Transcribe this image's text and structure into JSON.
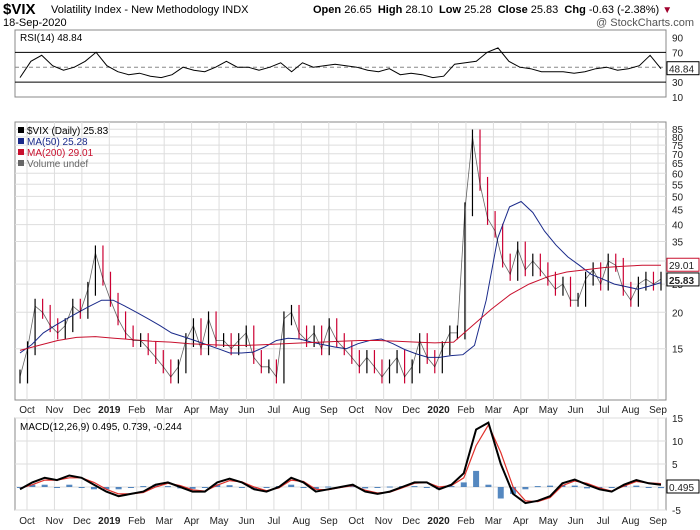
{
  "header": {
    "symbol": "$VIX",
    "name": "Volatility Index - New Methodology",
    "exchange": "INDX",
    "date": "18-Sep-2020",
    "open_label": "Open",
    "open": "26.65",
    "high_label": "High",
    "high": "28.10",
    "low_label": "Low",
    "low": "25.28",
    "close_label": "Close",
    "close": "25.83",
    "chg_label": "Chg",
    "chg": "-0.63 (-2.38%)",
    "watermark": "@ StockCharts.com"
  },
  "colors": {
    "price_up": "#000000",
    "price_down": "#cc0033",
    "ma50": "#1a2a8a",
    "ma200": "#c8102e",
    "macd_line": "#000000",
    "macd_signal": "#e0302a",
    "histogram": "#2a6ab0",
    "rsi_line": "#000000",
    "grid": "#dddddd"
  },
  "chart_data": [
    {
      "type": "line",
      "panel": "rsi",
      "legend": "RSI(14) 48.84",
      "ylim": [
        10,
        100
      ],
      "ticks": [
        "10",
        "30",
        "70",
        "90"
      ],
      "reference_lines": [
        30,
        70
      ],
      "last_value": "48.84",
      "series": [
        {
          "name": "RSI(14)",
          "values": [
            36,
            58,
            66,
            52,
            46,
            50,
            58,
            70,
            52,
            44,
            40,
            42,
            38,
            36,
            40,
            50,
            46,
            44,
            50,
            58,
            50,
            50,
            46,
            50,
            56,
            44,
            56,
            50,
            52,
            54,
            52,
            50,
            46,
            44,
            48,
            40,
            42,
            40,
            36,
            38,
            54,
            56,
            58,
            70,
            76,
            58,
            50,
            48,
            44,
            44,
            44,
            42,
            44,
            48,
            50,
            46,
            48,
            52,
            66,
            48
          ]
        }
      ]
    },
    {
      "type": "line",
      "panel": "price",
      "legend": [
        "$VIX (Daily) 25.83",
        "MA(50) 25.28",
        "MA(200) 29.01",
        "Volume undef"
      ],
      "scale": "log",
      "ylim": [
        10,
        90
      ],
      "ticks": [
        "15",
        "20",
        "25",
        "30",
        "35",
        "40",
        "45",
        "50",
        "55",
        "60",
        "65",
        "70",
        "75",
        "80",
        "85"
      ],
      "x_labels": [
        "Oct",
        "Nov",
        "Dec",
        "2019",
        "Feb",
        "Mar",
        "Apr",
        "May",
        "Jun",
        "Jul",
        "Aug",
        "Sep",
        "Oct",
        "Nov",
        "Dec",
        "2020",
        "Feb",
        "Mar",
        "Apr",
        "May",
        "Jun",
        "Jul",
        "Aug",
        "Sep"
      ],
      "last_values": {
        "ma200": "29.01",
        "close": "25.83"
      },
      "series": [
        {
          "name": "$VIX (Daily)",
          "values": [
            12,
            15,
            21,
            20,
            18,
            17,
            18,
            21,
            20,
            24,
            32,
            26,
            22,
            19,
            17,
            16,
            16,
            15,
            14,
            13,
            12,
            13,
            16,
            18,
            15,
            19,
            16,
            16,
            15,
            16,
            17,
            14,
            13,
            13,
            12,
            19,
            20,
            17,
            16,
            17,
            15,
            18,
            16,
            15,
            14,
            13,
            14,
            13,
            12,
            13,
            14,
            12,
            13,
            16,
            14,
            13,
            15,
            17,
            17,
            45,
            80,
            55,
            42,
            38,
            30,
            27,
            33,
            28,
            30,
            28,
            26,
            24,
            25,
            22,
            22,
            26,
            28,
            25,
            30,
            29,
            24,
            22,
            25,
            26,
            25,
            26
          ]
        },
        {
          "name": "MA(50)",
          "values": [
            14.5,
            15.5,
            17,
            18,
            19,
            20,
            21,
            22,
            22,
            21,
            20,
            19,
            18,
            17,
            16.5,
            16,
            15.5,
            15,
            14.5,
            14.5,
            14.6,
            15.2,
            16,
            16.3,
            16.2,
            15.8,
            15.5,
            15.2,
            15,
            15.6,
            16,
            16.2,
            15.6,
            14.9,
            14.4,
            14,
            14,
            14.2,
            14.3,
            15.4,
            22,
            36,
            46,
            48,
            44,
            38,
            34,
            31,
            29,
            27,
            26,
            25,
            24.5,
            24,
            24.6,
            25.3
          ]
        },
        {
          "name": "MA(200)",
          "values": [
            14.8,
            15.4,
            16,
            16.4,
            16.5,
            16.3,
            16.1,
            15.9,
            15.8,
            15.6,
            15.5,
            15.4,
            15.4,
            15.5,
            15.6,
            15.7,
            15.8,
            15.9,
            16,
            16,
            15.9,
            15.8,
            15.7,
            15.8,
            18,
            20.5,
            23,
            25,
            26.5,
            27.5,
            28,
            28.5,
            28.8,
            29,
            29.01
          ]
        }
      ]
    },
    {
      "type": "line",
      "panel": "macd",
      "legend": "MACD(12,26,9) 0.495, 0.739, -0.244",
      "ylim": [
        -5,
        15
      ],
      "ticks": [
        "-5",
        "0",
        "5",
        "10",
        "15"
      ],
      "x_labels": [
        "Oct",
        "Nov",
        "Dec",
        "2019",
        "Feb",
        "Mar",
        "Apr",
        "May",
        "Jun",
        "Jul",
        "Aug",
        "Sep",
        "Oct",
        "Nov",
        "Dec",
        "2020",
        "Feb",
        "Mar",
        "Apr",
        "May",
        "Jun",
        "Jul",
        "Aug",
        "Sep"
      ],
      "last_value": "0.495",
      "series": [
        {
          "name": "MACD",
          "values": [
            -0.5,
            1,
            2,
            1.5,
            2.5,
            2,
            0.5,
            -1,
            -2,
            -1.5,
            -1,
            0.5,
            1,
            0,
            -1,
            -1,
            1,
            1.8,
            1,
            -0.5,
            -1,
            0,
            2,
            1,
            -1,
            -0.5,
            0,
            0.5,
            -1,
            -1.5,
            -1,
            0,
            1,
            1,
            -0.5,
            0.5,
            3,
            12.5,
            14,
            5,
            -1.5,
            -3.5,
            -3,
            -2,
            0.8,
            1.6,
            0.5,
            -0.5,
            -1,
            0.5,
            1.5,
            0.8,
            0.5
          ]
        },
        {
          "name": "Signal",
          "values": [
            -0.3,
            0.5,
            1.5,
            1.5,
            2,
            2,
            1,
            -0.5,
            -1.5,
            -1.5,
            -1.2,
            0,
            0.8,
            0.3,
            -0.6,
            -0.9,
            0.4,
            1.4,
            1.1,
            0,
            -0.8,
            -0.2,
            1.5,
            1.2,
            -0.5,
            -0.6,
            -0.1,
            0.3,
            -0.7,
            -1.3,
            -1.1,
            -0.2,
            0.8,
            1,
            0,
            0.3,
            2,
            9,
            13.5,
            7.5,
            0,
            -3,
            -3.2,
            -2.3,
            0.3,
            1.3,
            0.8,
            -0.2,
            -0.9,
            0.2,
            1.2,
            0.9,
            0.74
          ]
        },
        {
          "name": "Histogram",
          "values": [
            -0.2,
            0.5,
            0.5,
            0,
            0.5,
            0,
            -0.5,
            -0.5,
            -0.5,
            0,
            0.2,
            0.5,
            0.2,
            -0.3,
            -0.4,
            -0.1,
            0.6,
            0.4,
            -0.1,
            -0.5,
            -0.2,
            0.2,
            0.5,
            -0.2,
            -0.5,
            0.1,
            0.1,
            0.2,
            -0.3,
            -0.2,
            0.1,
            0.2,
            0.2,
            0,
            -0.5,
            0.2,
            1,
            3.5,
            0.5,
            -2.5,
            -1.5,
            -0.5,
            0.2,
            0.3,
            0.5,
            0.3,
            -0.3,
            -0.3,
            -0.1,
            0.3,
            0.3,
            -0.1,
            -0.24
          ]
        }
      ]
    }
  ]
}
